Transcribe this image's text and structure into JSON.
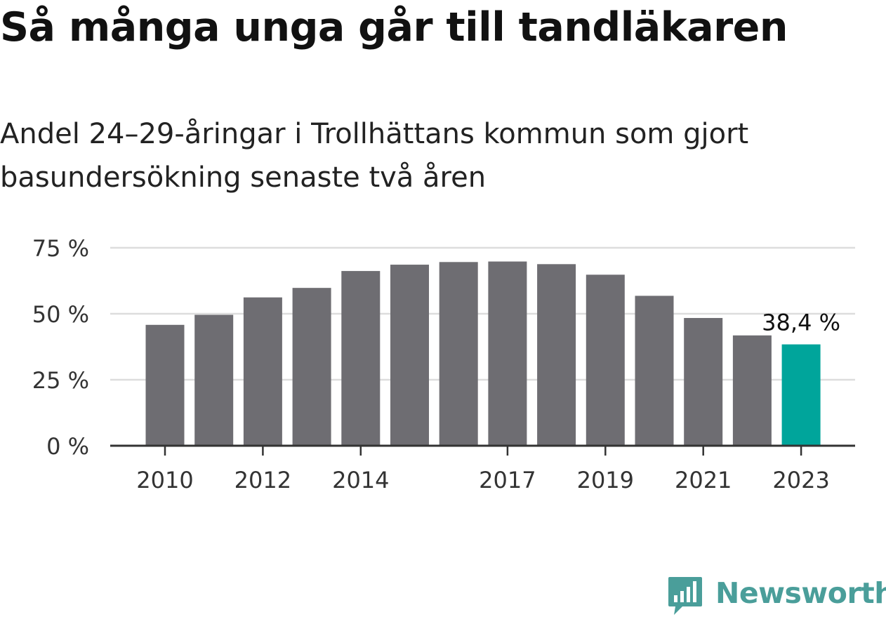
{
  "title": "Så många unga går till tandläkaren",
  "subtitle": "Andel 24–29-åringar i Trollhättans kommun som gjort basundersökning senaste två åren",
  "brand": {
    "name": "Newsworthy",
    "icon": "newsworthy-bar-chart-icon",
    "color": "#4a9e9a"
  },
  "chart_data": {
    "type": "bar",
    "categories": [
      "2010",
      "2011",
      "2012",
      "2013",
      "2014",
      "2015",
      "2016",
      "2017",
      "2018",
      "2019",
      "2020",
      "2021",
      "2022",
      "2023"
    ],
    "values": [
      45.8,
      49.6,
      56.2,
      59.8,
      66.2,
      68.6,
      69.6,
      69.8,
      68.8,
      64.8,
      56.8,
      48.4,
      41.8,
      38.4
    ],
    "tick_labels_x": [
      "2010",
      "",
      "2012",
      "",
      "2014",
      "",
      "",
      "2017",
      "",
      "2019",
      "",
      "2021",
      "",
      "2023"
    ],
    "y_ticks": [
      0,
      25,
      50,
      75
    ],
    "y_tick_labels": [
      "0 %",
      "25 %",
      "50 %",
      "75 %"
    ],
    "ylim": [
      0,
      75
    ],
    "grid": true,
    "highlight_index": 13,
    "highlight_label": "38,4 %",
    "colors": {
      "bar": "#6e6d72",
      "highlight": "#00a59b",
      "grid": "#dddddd",
      "axis": "#333333"
    }
  }
}
